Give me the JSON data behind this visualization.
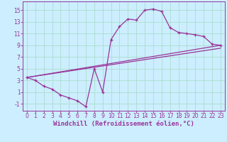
{
  "bg_color": "#cceeff",
  "line_color": "#993399",
  "grid_color": "#aaddcc",
  "xlabel": "Windchill (Refroidissement éolien,°C)",
  "xlabel_fontsize": 6.5,
  "tick_fontsize": 5.5,
  "xlim": [
    -0.5,
    23.5
  ],
  "ylim": [
    -2.2,
    16.5
  ],
  "yticks": [
    -1,
    1,
    3,
    5,
    7,
    9,
    11,
    13,
    15
  ],
  "xticks": [
    0,
    1,
    2,
    3,
    4,
    5,
    6,
    7,
    8,
    9,
    10,
    11,
    12,
    13,
    14,
    15,
    16,
    17,
    18,
    19,
    20,
    21,
    22,
    23
  ],
  "series1_x": [
    0,
    1,
    2,
    3,
    4,
    5,
    6,
    7,
    8,
    9,
    10,
    11,
    12,
    13,
    14,
    15,
    16,
    17,
    18,
    19,
    20,
    21,
    22,
    23
  ],
  "series1_y": [
    3.5,
    3.0,
    2.0,
    1.5,
    0.5,
    0.0,
    -0.5,
    -1.5,
    5.0,
    1.0,
    10.0,
    12.2,
    13.5,
    13.3,
    15.0,
    15.2,
    14.8,
    12.0,
    11.2,
    11.0,
    10.8,
    10.5,
    9.2,
    9.0
  ],
  "line2_x": [
    0,
    23
  ],
  "line2_y": [
    3.5,
    9.0
  ],
  "line3_x": [
    0,
    23
  ],
  "line3_y": [
    3.5,
    8.5
  ]
}
